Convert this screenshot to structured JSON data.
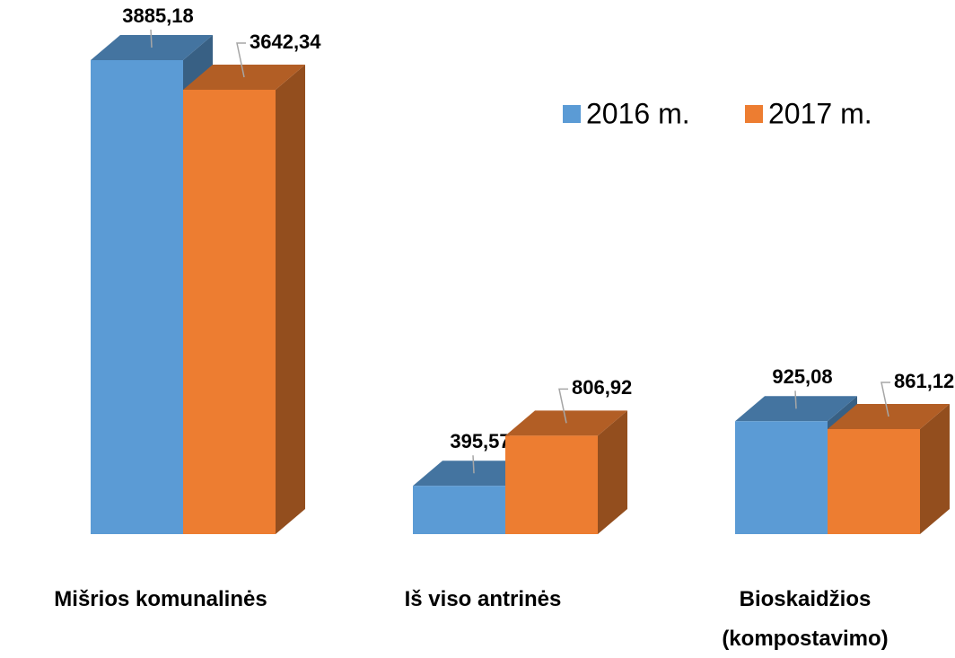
{
  "chart_data": {
    "type": "bar3d",
    "categories": [
      "Mišrios komunalinės",
      "Iš viso antrinės",
      "Bioskaidžios (kompostavimo)"
    ],
    "series": [
      {
        "name": "2016 m.",
        "color": "#5b9bd5",
        "values": [
          3885.18,
          395.57,
          925.08
        ],
        "value_labels": [
          "3885,18",
          "395,57",
          "925,08"
        ]
      },
      {
        "name": "2017 m.",
        "color": "#ed7d31",
        "values": [
          3642.34,
          806.92,
          861.12
        ],
        "value_labels": [
          "3642,34",
          "806,92",
          "861,12"
        ]
      }
    ],
    "legend": "top-right"
  }
}
